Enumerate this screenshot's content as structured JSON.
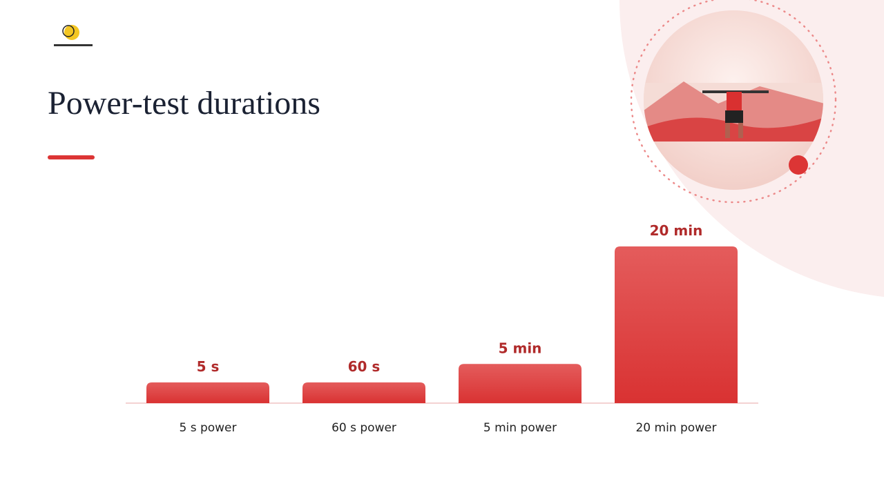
{
  "chart_data": {
    "type": "bar",
    "title": "Power-test durations",
    "categories": [
      "5 s power",
      "60 s power",
      "5 min power",
      "20 min power"
    ],
    "values": [
      5,
      60,
      300,
      1200
    ],
    "value_labels": [
      "5 s",
      "60 s",
      "5 min",
      "20 min"
    ],
    "color": "#dc3535"
  }
}
